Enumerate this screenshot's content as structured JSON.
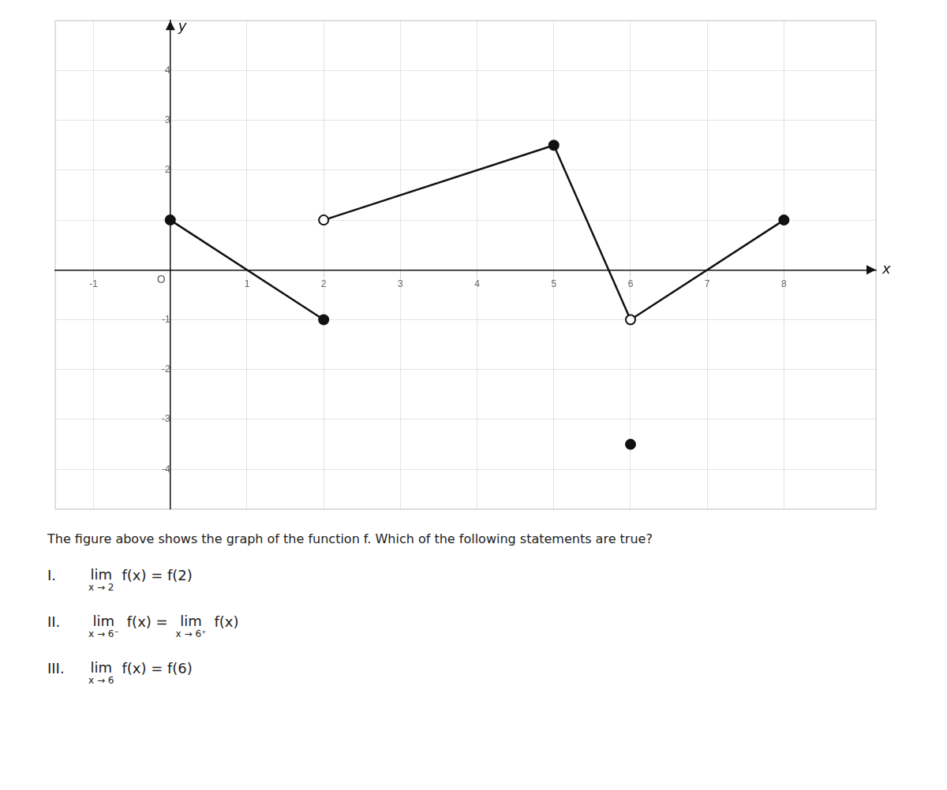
{
  "chart_data": {
    "type": "line",
    "xlabel": "x",
    "ylabel": "y",
    "origin_label": "O",
    "xlim": [
      -1.5,
      9.2
    ],
    "ylim": [
      -4.8,
      5.0
    ],
    "xticks": [
      -1,
      1,
      2,
      3,
      4,
      5,
      6,
      7,
      8
    ],
    "yticks": [
      -4,
      -3,
      -2,
      -1,
      1,
      2,
      3,
      4
    ],
    "grid": true,
    "color": "#111111",
    "series": [
      {
        "type": "line",
        "x": [
          0,
          2
        ],
        "values": [
          1,
          -1
        ]
      },
      {
        "type": "line",
        "x": [
          2,
          5
        ],
        "values": [
          1,
          2.5
        ]
      },
      {
        "type": "line",
        "x": [
          5,
          6
        ],
        "values": [
          2.5,
          -1
        ]
      },
      {
        "type": "line",
        "x": [
          6,
          8
        ],
        "values": [
          -1,
          1
        ]
      },
      {
        "type": "scatter",
        "marker": "filled",
        "x": [
          0,
          2,
          5,
          8,
          6
        ],
        "values": [
          1,
          -1,
          2.5,
          1,
          -3.5
        ]
      },
      {
        "type": "scatter",
        "marker": "open",
        "x": [
          2,
          6
        ],
        "values": [
          1,
          -1
        ]
      }
    ],
    "annotations": {
      "description": "The figure above shows the graph of the function f. Which of the following statements are true?",
      "statements": [
        [
          "I.",
          {
            "op": "lim",
            "under": "x → 2"
          },
          "f(x) = f(2)"
        ],
        [
          "II.",
          {
            "op": "lim",
            "under": "x → 6⁻"
          },
          "f(x) =",
          {
            "op": "lim",
            "under": "x → 6⁺"
          },
          "f(x)"
        ],
        [
          "III.",
          {
            "op": "lim",
            "under": "x → 6"
          },
          "f(x) = f(6)"
        ]
      ]
    }
  }
}
